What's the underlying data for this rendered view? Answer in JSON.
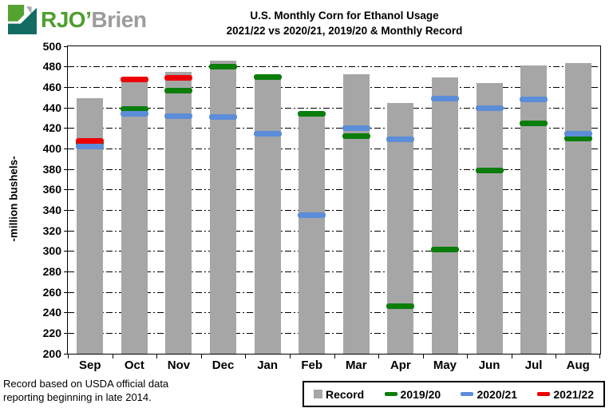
{
  "logo": {
    "rjo": "RJO’",
    "brien": "Brien"
  },
  "title": {
    "line1": "U.S. Monthly  Corn for Ethanol Usage",
    "line2": "2021/22  vs 2020/21, 2019/20 & Monthly  Record"
  },
  "y_axis_title": "-million bushels-",
  "footnote": {
    "line1": "Record based on USDA official  data",
    "line2": "reporting  beginning  in late 2014."
  },
  "legend": {
    "items": [
      {
        "label": "Record",
        "marker": "square",
        "color": "#a6a6a6"
      },
      {
        "label": "2019/20",
        "marker": "dash",
        "color": "#0a7d0a"
      },
      {
        "label": "2020/21",
        "marker": "dash",
        "color": "#5b8dd9"
      },
      {
        "label": "2021/22",
        "marker": "dash",
        "color": "#ee0000"
      }
    ]
  },
  "chart_data": {
    "type": "bar",
    "title": "U.S. Monthly Corn for Ethanol Usage 2021/22 vs 2020/21, 2019/20 & Monthly Record",
    "xlabel": "",
    "ylabel": "-million bushels-",
    "ylim": [
      200,
      500
    ],
    "ytick_step": 20,
    "yticks": [
      200,
      220,
      240,
      260,
      280,
      300,
      320,
      340,
      360,
      380,
      400,
      420,
      440,
      460,
      480,
      500
    ],
    "grid": true,
    "legend_position": "bottom-right",
    "categories": [
      "Sep",
      "Oct",
      "Nov",
      "Dec",
      "Jan",
      "Feb",
      "Mar",
      "Apr",
      "May",
      "Jun",
      "Jul",
      "Aug"
    ],
    "series": [
      {
        "name": "Record",
        "render": "bar",
        "color": "#a6a6a6",
        "values": [
          449,
          470,
          475,
          486,
          472,
          433,
          473,
          445,
          470,
          464,
          481,
          484
        ]
      },
      {
        "name": "2019/20",
        "render": "dash",
        "color": "#0a7d0a",
        "values": [
          405,
          439,
          457,
          480,
          470,
          434,
          412,
          246,
          302,
          379,
          425,
          410
        ]
      },
      {
        "name": "2020/21",
        "render": "dash",
        "color": "#5b8dd9",
        "values": [
          402,
          434,
          432,
          431,
          415,
          335,
          420,
          409,
          449,
          440,
          448,
          415
        ]
      },
      {
        "name": "2021/22",
        "render": "dash",
        "color": "#ee0000",
        "values": [
          408,
          468,
          469,
          null,
          null,
          null,
          null,
          null,
          null,
          null,
          null,
          null
        ]
      }
    ]
  }
}
